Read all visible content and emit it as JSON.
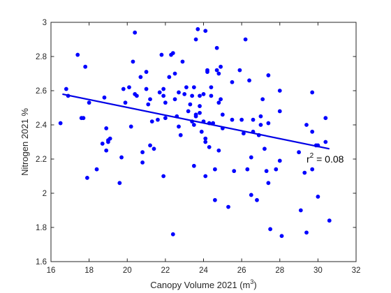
{
  "chart_data": {
    "type": "scatter",
    "title": "",
    "xlabel_base": "Canopy Volume 2021 (m",
    "xlabel_sup": "3",
    "xlabel_end": ")",
    "ylabel": "Nitrogen 2021 %",
    "xlim": [
      16,
      32
    ],
    "ylim": [
      1.6,
      3.0
    ],
    "xticks": [
      16,
      18,
      20,
      22,
      24,
      26,
      28,
      30,
      32
    ],
    "yticks": [
      1.6,
      1.8,
      2.0,
      2.2,
      2.4,
      2.6,
      2.8,
      3.0
    ],
    "xtick_labels": [
      "16",
      "18",
      "20",
      "22",
      "24",
      "26",
      "28",
      "30",
      "32"
    ],
    "ytick_labels": [
      "1.6",
      "1.8",
      "2",
      "2.2",
      "2.4",
      "2.6",
      "2.8",
      "3"
    ],
    "grid": false,
    "colors": {
      "points": "#0000ff",
      "fit": "#0000e6",
      "axes": "#262626"
    },
    "fit_line": {
      "x": [
        16.6,
        30.6
      ],
      "y": [
        2.58,
        2.26
      ]
    },
    "annotation": {
      "base": "r",
      "sup": "2",
      "rest": " = 0.08",
      "x": 29.4,
      "y": 2.2
    },
    "series": [
      {
        "x": [
          16.5,
          16.8,
          16.9,
          17.4,
          17.6,
          17.7,
          17.8,
          17.9,
          18.0,
          18.4,
          18.7,
          18.8,
          18.9,
          18.9,
          19.0,
          19.0,
          19.1,
          19.6,
          19.7,
          19.8,
          19.9,
          20.1,
          20.2,
          20.3,
          20.4,
          20.4,
          20.5,
          20.7,
          20.8,
          20.8,
          21.0,
          21.0,
          21.1,
          21.2,
          21.2,
          21.3,
          21.4,
          21.6,
          21.7,
          21.8,
          21.9,
          21.9,
          21.9,
          22.0,
          22.0,
          22.2,
          22.3,
          22.4,
          22.4,
          22.5,
          22.5,
          22.6,
          22.7,
          22.7,
          22.8,
          22.9,
          23.0,
          23.1,
          23.2,
          23.3,
          23.4,
          23.4,
          23.5,
          23.5,
          23.5,
          23.6,
          23.6,
          23.6,
          23.7,
          23.8,
          23.8,
          23.8,
          23.9,
          24.0,
          24.0,
          24.1,
          24.1,
          24.1,
          24.1,
          24.2,
          24.2,
          24.3,
          24.3,
          24.4,
          24.4,
          24.5,
          24.6,
          24.6,
          24.7,
          24.7,
          24.8,
          24.8,
          24.8,
          24.9,
          24.9,
          25.0,
          25.0,
          25.3,
          25.5,
          25.5,
          25.6,
          25.9,
          26.0,
          26.1,
          26.2,
          26.3,
          26.4,
          26.5,
          26.5,
          26.6,
          26.6,
          26.8,
          26.9,
          27.0,
          27.0,
          27.1,
          27.2,
          27.3,
          27.4,
          27.4,
          27.4,
          27.5,
          27.8,
          28.0,
          28.0,
          28.0,
          28.1,
          29.0,
          29.1,
          29.3,
          29.4,
          29.4,
          29.7,
          29.7,
          29.7,
          29.9,
          30.0,
          30.0,
          30.4,
          30.4,
          30.6
        ],
        "y": [
          2.41,
          2.61,
          2.57,
          2.81,
          2.44,
          2.44,
          2.74,
          2.09,
          2.53,
          2.14,
          2.29,
          2.56,
          2.38,
          2.25,
          2.3,
          2.31,
          2.32,
          2.06,
          2.21,
          2.61,
          2.53,
          2.62,
          2.39,
          2.77,
          2.94,
          2.58,
          2.57,
          2.68,
          2.24,
          2.18,
          2.61,
          2.71,
          2.52,
          2.55,
          2.28,
          2.42,
          2.26,
          2.43,
          2.59,
          2.81,
          2.61,
          2.57,
          2.1,
          2.53,
          2.44,
          2.68,
          2.81,
          2.82,
          1.76,
          2.7,
          2.55,
          2.45,
          2.59,
          2.39,
          2.34,
          2.77,
          2.58,
          2.62,
          2.48,
          2.52,
          2.57,
          2.42,
          2.62,
          2.4,
          2.16,
          2.46,
          2.9,
          2.45,
          2.96,
          2.51,
          2.57,
          2.47,
          2.36,
          2.42,
          2.58,
          2.32,
          2.3,
          2.1,
          2.95,
          2.72,
          2.71,
          2.27,
          2.41,
          2.62,
          2.57,
          2.41,
          2.14,
          1.96,
          2.72,
          2.85,
          2.53,
          2.7,
          2.25,
          2.55,
          2.74,
          2.46,
          2.38,
          1.92,
          2.65,
          2.43,
          2.13,
          2.72,
          2.43,
          2.35,
          2.9,
          2.14,
          2.66,
          2.21,
          1.99,
          2.36,
          2.43,
          1.96,
          2.34,
          2.45,
          2.4,
          2.55,
          2.26,
          2.13,
          2.69,
          2.41,
          2.06,
          1.79,
          2.14,
          2.19,
          2.6,
          2.48,
          1.75,
          2.24,
          1.9,
          2.12,
          2.4,
          1.77,
          2.14,
          2.36,
          2.59,
          2.28,
          2.28,
          1.98,
          2.44,
          2.3,
          1.84
        ]
      }
    ]
  }
}
